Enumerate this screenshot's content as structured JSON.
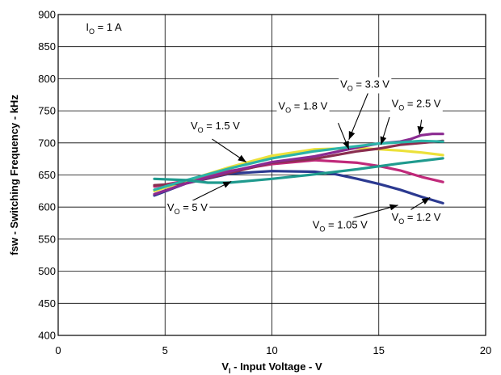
{
  "chart_data": {
    "type": "line",
    "title": "",
    "xlabel": {
      "main": "V",
      "sub": "I",
      "rest": " - Input Voltage - V"
    },
    "ylabel": "fsw - Switching Frequency - kHz",
    "xlim": [
      0,
      20
    ],
    "ylim": [
      400,
      900
    ],
    "x_ticks": [
      "0",
      "5",
      "10",
      "15",
      "20"
    ],
    "y_ticks": [
      "400",
      "450",
      "500",
      "550",
      "600",
      "650",
      "700",
      "750",
      "800",
      "850",
      "900"
    ],
    "grid": true,
    "condition": {
      "main": "I",
      "sub": "O",
      "rest": " = 1 A"
    },
    "series": [
      {
        "name": "V_O = 1.05 V",
        "color": "#2b3990",
        "x": [
          4.5,
          6,
          8,
          10,
          12,
          13,
          14,
          15,
          16,
          17,
          18
        ],
        "y": [
          618,
          637,
          652,
          656,
          655,
          651,
          644,
          636,
          627,
          616,
          606
        ]
      },
      {
        "name": "V_O = 1.2 V",
        "color": "#c0297a",
        "x": [
          4.5,
          6,
          8,
          10,
          12,
          14,
          15,
          16,
          17,
          18
        ],
        "y": [
          632,
          641,
          656,
          667,
          673,
          669,
          664,
          657,
          647,
          639
        ]
      },
      {
        "name": "V_O = 1.5 V",
        "color": "#ece13a",
        "x": [
          4.5,
          6,
          8,
          10,
          12,
          14,
          15,
          16,
          17,
          18
        ],
        "y": [
          625,
          641,
          662,
          680,
          690,
          692,
          690,
          688,
          685,
          681
        ]
      },
      {
        "name": "V_O = 1.8 V",
        "color": "#8a2e4f",
        "x": [
          4.5,
          6,
          8,
          10,
          12,
          14,
          15,
          16,
          17,
          18
        ],
        "y": [
          634,
          637,
          653,
          669,
          675,
          687,
          691,
          697,
          700,
          703
        ]
      },
      {
        "name": "V_O = 2.5 V",
        "color": "#8b2a91",
        "x": [
          4.5,
          6,
          8,
          10,
          12,
          14,
          15,
          16,
          16.5,
          17,
          17.5,
          18
        ],
        "y": [
          620,
          637,
          655,
          670,
          679,
          693,
          699,
          702,
          706,
          712,
          714,
          714
        ]
      },
      {
        "name": "V_O = 3.3 V",
        "color": "#2bb3a8",
        "x": [
          4.5,
          6,
          8,
          10,
          12,
          14,
          15,
          16,
          17,
          18
        ],
        "y": [
          627,
          642,
          660,
          676,
          687,
          695,
          699,
          701,
          703,
          702
        ]
      },
      {
        "name": "V_O = 5 V",
        "color": "#1f9a8e",
        "x": [
          4.5,
          6,
          7,
          8,
          10,
          12,
          14,
          16,
          18
        ],
        "y": [
          644,
          642,
          638,
          638,
          644,
          651,
          659,
          668,
          676
        ]
      }
    ],
    "annotations": [
      {
        "main": "V",
        "sub": "O",
        "rest": " = 3.3 V",
        "x": 13.2,
        "y": 786
      },
      {
        "main": "V",
        "sub": "O",
        "rest": " = 1.8 V",
        "x": 10.3,
        "y": 752
      },
      {
        "main": "V",
        "sub": "O",
        "rest": " = 2.5 V",
        "x": 15.6,
        "y": 756
      },
      {
        "main": "V",
        "sub": "O",
        "rest": " = 1.5 V",
        "x": 6.2,
        "y": 721
      },
      {
        "main": "V",
        "sub": "O",
        "rest": " = 5 V",
        "x": 5.1,
        "y": 594
      },
      {
        "main": "V",
        "sub": "O",
        "rest": " = 1.05 V",
        "x": 11.9,
        "y": 567
      },
      {
        "main": "V",
        "sub": "O",
        "rest": " = 1.2 V",
        "x": 15.6,
        "y": 579
      }
    ],
    "pointers": [
      {
        "from": [
          14.5,
          778
        ],
        "to": [
          13.6,
          705
        ]
      },
      {
        "from": [
          13.1,
          731
        ],
        "to": [
          13.6,
          690
        ]
      },
      {
        "from": [
          15.5,
          740
        ],
        "to": [
          15.1,
          697
        ]
      },
      {
        "from": [
          17.0,
          736
        ],
        "to": [
          16.9,
          713
        ]
      },
      {
        "from": [
          7.2,
          706
        ],
        "to": [
          8.8,
          670
        ]
      },
      {
        "from": [
          6.1,
          607
        ],
        "to": [
          8.1,
          640
        ]
      },
      {
        "from": [
          13.8,
          583
        ],
        "to": [
          15.9,
          603
        ]
      },
      {
        "from": [
          16.5,
          596
        ],
        "to": [
          17.4,
          615
        ]
      }
    ]
  }
}
